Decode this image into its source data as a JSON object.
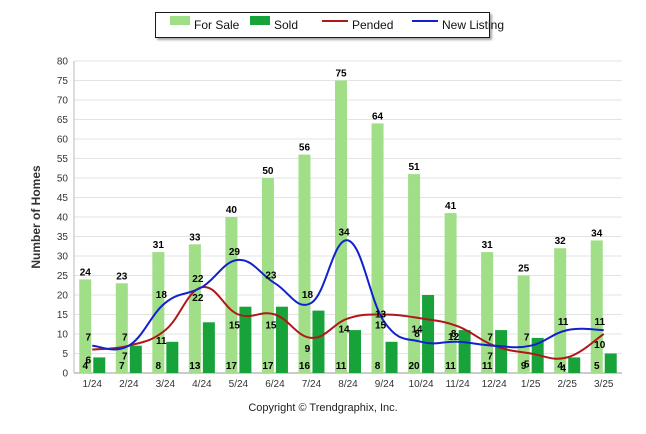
{
  "chart_data": {
    "type": "bar",
    "title": "",
    "xlabel": "",
    "ylabel": "Number of Homes",
    "ylim": [
      0,
      80
    ],
    "yticks": [
      0,
      5,
      10,
      15,
      20,
      25,
      30,
      35,
      40,
      45,
      50,
      55,
      60,
      65,
      70,
      75,
      80
    ],
    "grid": true,
    "legend_position": "top-center",
    "categories": [
      "1/24",
      "2/24",
      "3/24",
      "4/24",
      "5/24",
      "6/24",
      "7/24",
      "8/24",
      "9/24",
      "10/24",
      "11/24",
      "12/24",
      "1/25",
      "2/25",
      "3/25"
    ],
    "series": [
      {
        "name": "For Sale",
        "kind": "bar",
        "color": "#a0de88",
        "values": [
          24,
          23,
          31,
          33,
          40,
          50,
          56,
          75,
          64,
          51,
          41,
          31,
          25,
          32,
          34
        ]
      },
      {
        "name": "Sold",
        "kind": "bar",
        "color": "#17a33a",
        "values": [
          4,
          7,
          8,
          13,
          17,
          17,
          16,
          11,
          8,
          20,
          11,
          11,
          9,
          4,
          5
        ]
      },
      {
        "name": "Pended",
        "kind": "line",
        "color": "#b01818",
        "values": [
          6,
          7,
          11,
          22,
          15,
          15,
          9,
          14,
          15,
          14,
          12,
          7,
          5,
          4,
          10
        ]
      },
      {
        "name": "New Listing",
        "kind": "line",
        "color": "#1122cc",
        "values": [
          7,
          7,
          18,
          22,
          29,
          23,
          18,
          34,
          13,
          8,
          8,
          7,
          7,
          11,
          11
        ]
      }
    ]
  },
  "footer": {
    "copyright": "Copyright © Trendgraphix, Inc."
  }
}
